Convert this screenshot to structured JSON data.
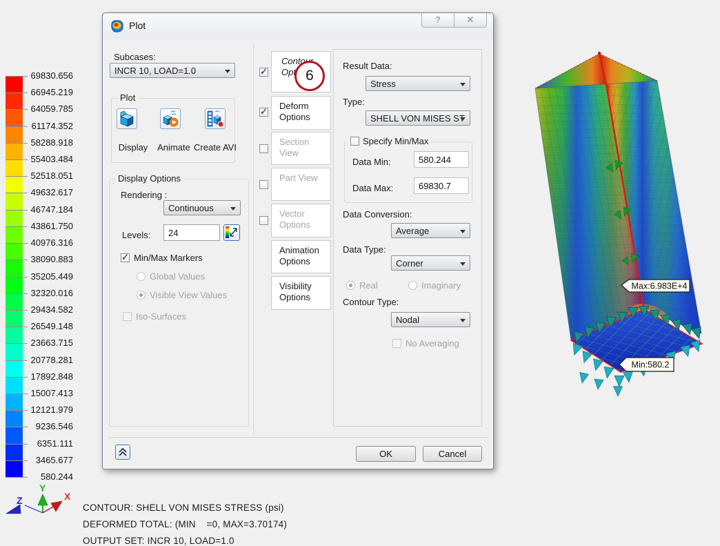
{
  "window": {
    "title": "Plot",
    "help_glyph": "?",
    "close_glyph": "✕"
  },
  "dialog": {
    "subcases": {
      "label": "Subcases:",
      "value": "INCR 10, LOAD=1.0"
    },
    "plot_group": {
      "title": "Plot",
      "display": "Display",
      "animate": "Animate",
      "create_avi": "Create AVI"
    },
    "display_options": {
      "title": "Display Options",
      "rendering_label": "Rendering :",
      "rendering_value": "Continuous",
      "levels_label": "Levels:",
      "levels_value": "24",
      "minmax_markers": "Min/Max Markers",
      "global_values": "Global Values",
      "visible_view_values": "Visible View Values",
      "iso_surfaces": "Iso-Surfaces"
    },
    "tabs": [
      {
        "label": "Contour Options",
        "checked": true,
        "state": "selected"
      },
      {
        "label": "Deform Options",
        "checked": true,
        "state": "enabled"
      },
      {
        "label": "Section View",
        "checked": false,
        "state": "disabled"
      },
      {
        "label": "Part View",
        "checked": false,
        "state": "disabled"
      },
      {
        "label": "Vector Options",
        "checked": false,
        "state": "disabled"
      },
      {
        "label": "Animation Options",
        "state": "enabled"
      },
      {
        "label": "Visibility Options",
        "state": "enabled"
      }
    ],
    "step_badge": "6",
    "contour_panel": {
      "result_data_label": "Result Data:",
      "result_data_value": "Stress",
      "type_label": "Type:",
      "type_value": "SHELL VON MISES ST",
      "specify_minmax": "Specify Min/Max",
      "data_min_label": "Data Min:",
      "data_min_value": "580.244",
      "data_max_label": "Data Max:",
      "data_max_value": "69830.7",
      "data_conversion_label": "Data Conversion:",
      "data_conversion_value": "Average",
      "data_type_label": "Data Type:",
      "data_type_value": "Corner",
      "real": "Real",
      "imaginary": "Imaginary",
      "contour_type_label": "Contour Type:",
      "contour_type_value": "Nodal",
      "no_averaging": "No Averaging"
    },
    "ok": "OK",
    "cancel": "Cancel"
  },
  "legend": {
    "values": [
      "69830.656",
      "66945.219",
      "64059.785",
      "61174.352",
      "58288.918",
      "55403.484",
      "52518.051",
      "49632.617",
      "46747.184",
      "43861.750",
      "40976.316",
      "38090.883",
      "35205.449",
      "32320.016",
      "29434.582",
      "26549.148",
      "23663.715",
      "20778.281",
      "17892.848",
      "15007.413",
      "12121.979",
      "9236.546",
      "6351.111",
      "3465.677",
      "580.244"
    ],
    "band_colors": [
      "#ff0000",
      "#ff2b00",
      "#ff5900",
      "#ff8400",
      "#ffb300",
      "#ffdd00",
      "#f2ff00",
      "#c8ff00",
      "#9dff00",
      "#6eff00",
      "#44ff00",
      "#15ff00",
      "#00ff15",
      "#00ff44",
      "#00ff6e",
      "#00ff9d",
      "#00ffc8",
      "#00fff2",
      "#00ddff",
      "#00b3ff",
      "#0084ff",
      "#0059ff",
      "#002bff",
      "#0000ff"
    ]
  },
  "viewport": {
    "max_flag": "Max:6.983E+4",
    "min_flag": "Min:580.2"
  },
  "triad": {
    "x": "X",
    "y": "Y",
    "z": "Z"
  },
  "status": {
    "lines": [
      "CONTOUR: SHELL VON MISES STRESS (psi)",
      "DEFORMED TOTAL: (MIN    =0, MAX=3.70174)",
      "OUTPUT SET: INCR 10, LOAD=1.0"
    ]
  },
  "colors": {
    "selected_tab_accent": "#f0a818",
    "annotation_red": "#b41420",
    "axis_x": "#cc1818",
    "axis_y": "#18b418",
    "axis_z": "#2028c8",
    "legend_top": "#ff0000",
    "legend_bottom": "#0000ff"
  }
}
